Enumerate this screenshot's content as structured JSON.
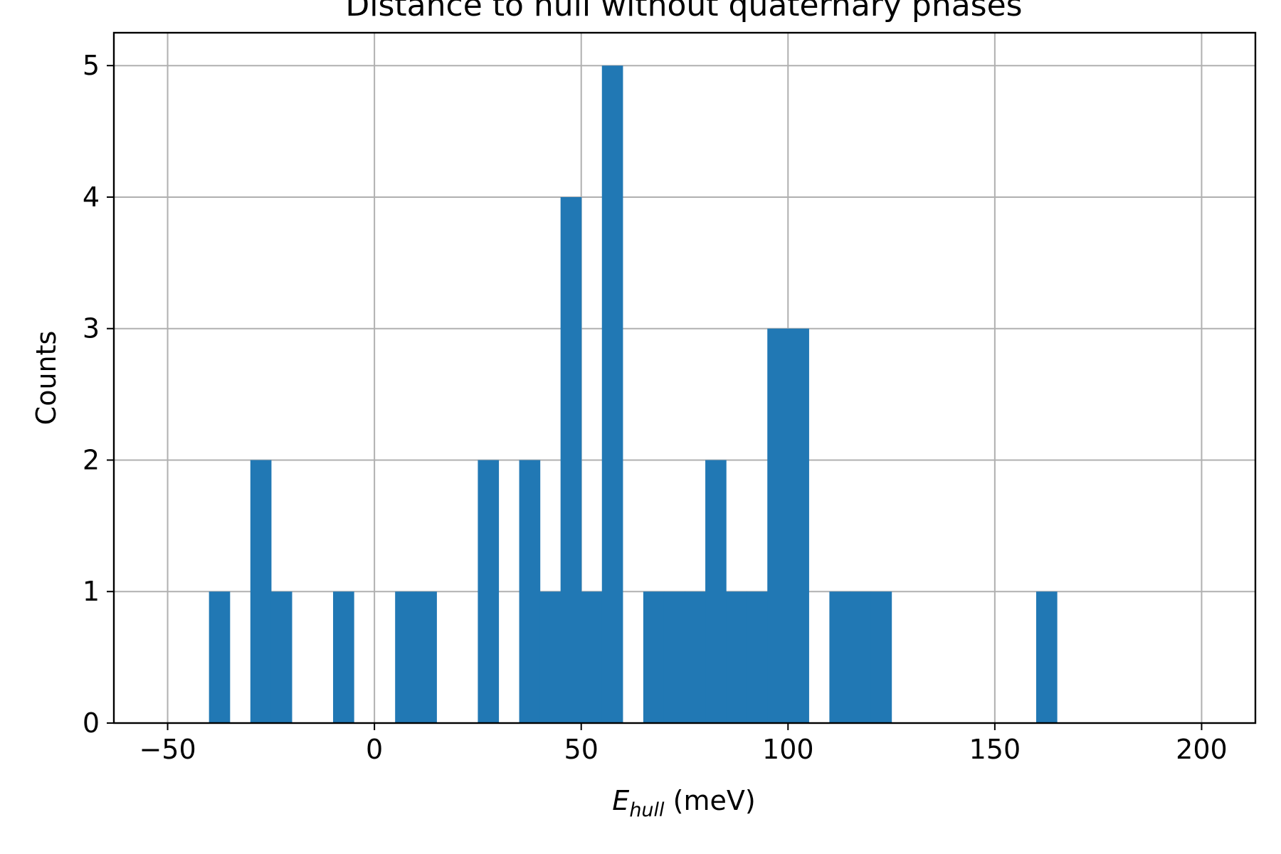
{
  "chart_data": {
    "type": "bar",
    "subtype": "histogram",
    "title": "Distance to hull without quaternary phases",
    "xlabel": {
      "symbol": "E",
      "subscript": "hull",
      "unit": "(meV)"
    },
    "ylabel": "Counts",
    "xlim": [
      -63,
      213
    ],
    "ylim": [
      0,
      5.25
    ],
    "xticks": [
      -50,
      0,
      50,
      100,
      150,
      200
    ],
    "xtick_labels": [
      "−50",
      "0",
      "50",
      "100",
      "150",
      "200"
    ],
    "yticks": [
      0,
      1,
      2,
      3,
      4,
      5
    ],
    "ytick_labels": [
      "0",
      "1",
      "2",
      "3",
      "4",
      "5"
    ],
    "grid": true,
    "bin_width": 5,
    "bins": [
      {
        "x0": -40,
        "count": 1
      },
      {
        "x0": -30,
        "count": 2
      },
      {
        "x0": -25,
        "count": 1
      },
      {
        "x0": -10,
        "count": 1
      },
      {
        "x0": 5,
        "count": 1
      },
      {
        "x0": 10,
        "count": 1
      },
      {
        "x0": 25,
        "count": 2
      },
      {
        "x0": 35,
        "count": 2
      },
      {
        "x0": 40,
        "count": 1
      },
      {
        "x0": 45,
        "count": 4
      },
      {
        "x0": 50,
        "count": 1
      },
      {
        "x0": 55,
        "count": 5
      },
      {
        "x0": 65,
        "count": 1
      },
      {
        "x0": 70,
        "count": 1
      },
      {
        "x0": 75,
        "count": 1
      },
      {
        "x0": 80,
        "count": 2
      },
      {
        "x0": 85,
        "count": 1
      },
      {
        "x0": 90,
        "count": 1
      },
      {
        "x0": 95,
        "count": 3
      },
      {
        "x0": 100,
        "count": 3
      },
      {
        "x0": 110,
        "count": 1
      },
      {
        "x0": 115,
        "count": 1
      },
      {
        "x0": 120,
        "count": 1
      },
      {
        "x0": 160,
        "count": 1
      }
    ],
    "colors": {
      "bar": "#2178b4",
      "grid": "#b0b0b0",
      "axis": "#000000"
    }
  }
}
